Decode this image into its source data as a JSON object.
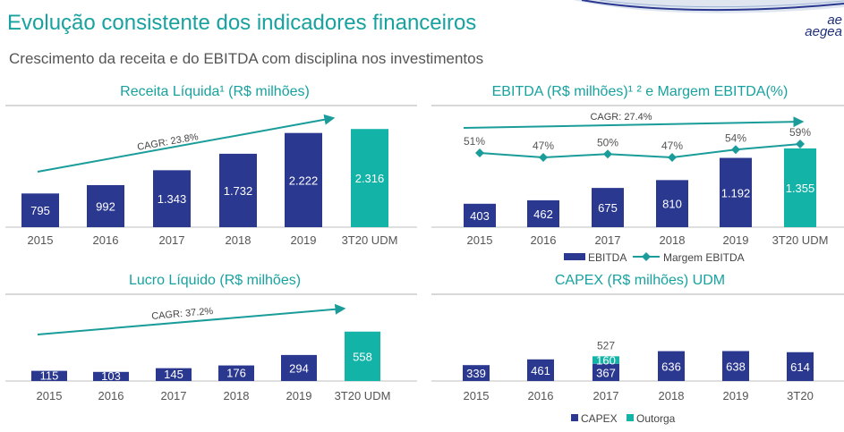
{
  "header": {
    "title": "Evolução consistente dos indicadores financeiros",
    "subtitle": "Crescimento da receita e do EBITDA com disciplina nos investimentos",
    "logo_top": "ae",
    "logo_bottom": "aegea"
  },
  "colors": {
    "navy": "#2a3890",
    "teal": "#14b3a8",
    "accent": "#17a2a0",
    "line": "#1a9d9a"
  },
  "chart_data": [
    {
      "id": "receita",
      "type": "bar",
      "title": "Receita Líquida¹ (R$ milhões)",
      "categories": [
        "2015",
        "2016",
        "2017",
        "2018",
        "2019",
        "3T20 UDM"
      ],
      "values": [
        795,
        992,
        1343,
        1732,
        2222,
        2316
      ],
      "labels": [
        "795",
        "992",
        "1.343",
        "1.732",
        "2.222",
        "2.316"
      ],
      "highlight_index": 5,
      "annotation": "CAGR: 23.8%"
    },
    {
      "id": "ebitda",
      "type": "bar",
      "title": "EBITDA (R$ milhões)¹ ² e Margem EBITDA(%)",
      "categories": [
        "2015",
        "2016",
        "2017",
        "2018",
        "2019",
        "3T20 UDM"
      ],
      "values": [
        403,
        462,
        675,
        810,
        1192,
        1355
      ],
      "labels": [
        "403",
        "462",
        "675",
        "810",
        "1.192",
        "1.355"
      ],
      "highlight_index": 5,
      "line_series": {
        "name": "Margem EBITDA",
        "values": [
          51,
          47,
          50,
          47,
          54,
          59
        ],
        "labels": [
          "51%",
          "47%",
          "50%",
          "47%",
          "54%",
          "59%"
        ]
      },
      "legend": [
        "EBITDA",
        "Margem EBITDA"
      ],
      "annotation": "CAGR: 27.4%"
    },
    {
      "id": "lucro",
      "type": "bar",
      "title": "Lucro Líquido (R$ milhões)",
      "categories": [
        "2015",
        "2016",
        "2017",
        "2018",
        "2019",
        "3T20 UDM"
      ],
      "values": [
        115,
        103,
        145,
        176,
        294,
        558
      ],
      "labels": [
        "115",
        "103",
        "145",
        "176",
        "294",
        "558"
      ],
      "highlight_index": 5,
      "annotation": "CAGR: 37.2%"
    },
    {
      "id": "capex",
      "type": "bar",
      "stacked": true,
      "title": "CAPEX (R$ milhões) UDM",
      "categories": [
        "2015",
        "2016",
        "2017",
        "2018",
        "2019",
        "3T20"
      ],
      "series": [
        {
          "name": "CAPEX",
          "values": [
            339,
            461,
            367,
            636,
            638,
            614
          ],
          "labels": [
            "339",
            "461",
            "367",
            "636",
            "638",
            "614"
          ]
        },
        {
          "name": "Outorga",
          "values": [
            0,
            0,
            160,
            0,
            0,
            0
          ],
          "labels": [
            "",
            "",
            "160",
            "",
            "",
            ""
          ]
        }
      ],
      "totals": [
        "",
        "",
        "527",
        "",
        "",
        ""
      ],
      "legend": [
        "CAPEX",
        "Outorga"
      ]
    }
  ]
}
